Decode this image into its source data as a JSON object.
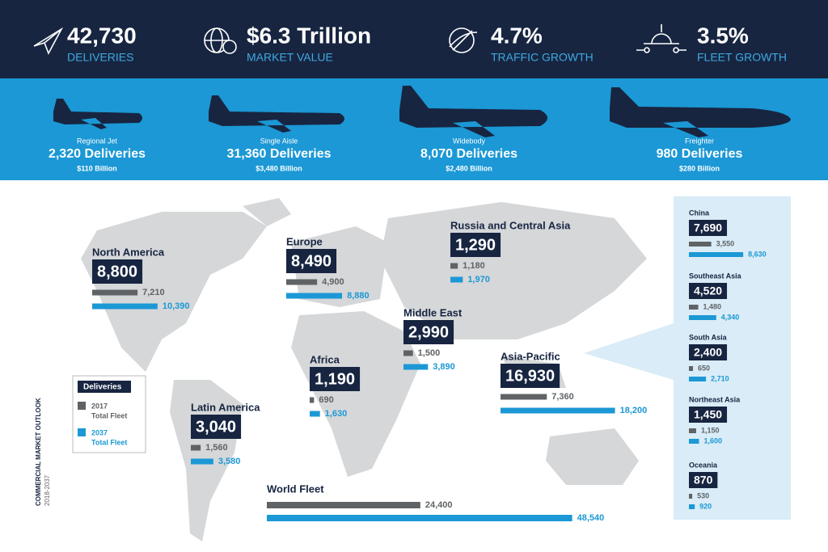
{
  "header": {
    "stats": [
      {
        "value": "42,730",
        "label": "DELIVERIES"
      },
      {
        "value": "$6.3 Trillion",
        "label": "MARKET VALUE"
      },
      {
        "value": "4.7%",
        "label": "TRAFFIC GROWTH"
      },
      {
        "value": "3.5%",
        "label": "FLEET GROWTH"
      }
    ]
  },
  "segments": [
    {
      "name": "Regional Jet",
      "deliveries": "2,320 Deliveries",
      "value": "$110 Billion"
    },
    {
      "name": "Single Aisle",
      "deliveries": "31,360 Deliveries",
      "value": "$3,480 Billion"
    },
    {
      "name": "Widebody",
      "deliveries": "8,070 Deliveries",
      "value": "$2,480 Billion"
    },
    {
      "name": "Freighter",
      "deliveries": "980 Deliveries",
      "value": "$280 Billion"
    }
  ],
  "legend": {
    "title": "Deliveries",
    "items": [
      {
        "year": "2017",
        "label": "Total Fleet"
      },
      {
        "year": "2037",
        "label": "Total Fleet"
      }
    ]
  },
  "regions": [
    {
      "name": "North America",
      "deliveries": "8,800",
      "fleet_2017": {
        "value": 7210,
        "label": "7,210"
      },
      "fleet_2037": {
        "value": 10390,
        "label": "10,390"
      }
    },
    {
      "name": "Europe",
      "deliveries": "8,490",
      "fleet_2017": {
        "value": 4900,
        "label": "4,900"
      },
      "fleet_2037": {
        "value": 8880,
        "label": "8,880"
      }
    },
    {
      "name": "Russia and Central Asia",
      "deliveries": "1,290",
      "fleet_2017": {
        "value": 1180,
        "label": "1,180"
      },
      "fleet_2037": {
        "value": 1970,
        "label": "1,970"
      }
    },
    {
      "name": "Middle East",
      "deliveries": "2,990",
      "fleet_2017": {
        "value": 1500,
        "label": "1,500"
      },
      "fleet_2037": {
        "value": 3890,
        "label": "3,890"
      }
    },
    {
      "name": "Africa",
      "deliveries": "1,190",
      "fleet_2017": 690,
      "fleet_2037": {
        "value": 1630,
        "label": "1,630"
      }
    },
    {
      "name": "Asia-Pacific",
      "deliveries": "16,930",
      "fleet_2017": {
        "value": 7360,
        "label": "7,360"
      },
      "fleet_2037": {
        "value": 18200,
        "label": "18,200"
      }
    },
    {
      "name": "Latin America",
      "deliveries": "3,040",
      "fleet_2017": {
        "value": 1560,
        "label": "1,560"
      },
      "fleet_2037": {
        "value": 3580,
        "label": "3,580"
      }
    }
  ],
  "world_fleet": {
    "name": "World Fleet",
    "fleet_2017": {
      "value": 24400,
      "label": "24,400"
    },
    "fleet_2037": {
      "value": 48540,
      "label": "48,540"
    }
  },
  "asia_pacific_detail": [
    {
      "name": "China",
      "deliveries": "7,690",
      "fleet_2017": {
        "value": 3550,
        "label": "3,550"
      },
      "fleet_2037": {
        "value": 8630,
        "label": "8,630"
      }
    },
    {
      "name": "Southeast Asia",
      "deliveries": "4,520",
      "fleet_2017": {
        "value": 1480,
        "label": "1,480"
      },
      "fleet_2037": {
        "value": 4340,
        "label": "4,340"
      }
    },
    {
      "name": "South Asia",
      "deliveries": "2,400",
      "fleet_2017": 650,
      "fleet_2037": {
        "value": 2710,
        "label": "2,710"
      }
    },
    {
      "name": "Northeast Asia",
      "deliveries": "1,450",
      "fleet_2017": {
        "value": 1150,
        "label": "1,150"
      },
      "fleet_2037": {
        "value": 1600,
        "label": "1,600"
      }
    },
    {
      "name": "Oceania",
      "deliveries": "870",
      "fleet_2017": 530,
      "fleet_2037": 920
    }
  ],
  "side_label": {
    "title": "COMMERCIAL MARKET OUTLOOK",
    "years": "2018-2037"
  }
}
